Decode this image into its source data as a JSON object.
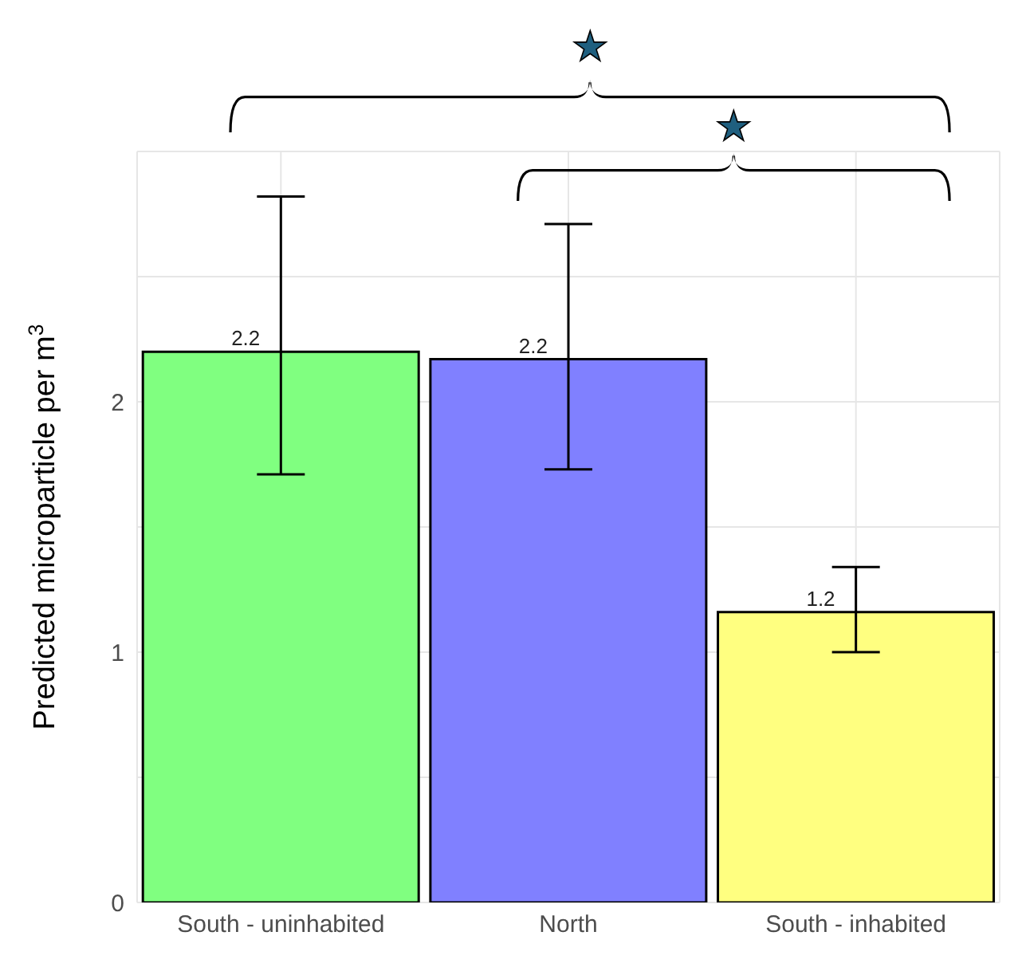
{
  "chart_data": {
    "type": "bar",
    "ylabel": "Predicted microparticle per m$^{3}$",
    "categories": [
      "South - uninhabited",
      "North",
      "South - inhabited"
    ],
    "values": [
      2.2,
      2.17,
      1.16
    ],
    "colors": [
      "#80ff80",
      "#8080ff",
      "#ffff80"
    ],
    "errors": [
      [
        1.71,
        2.82
      ],
      [
        1.73,
        2.71
      ],
      [
        1.0,
        1.34
      ]
    ],
    "value_labels": [
      "2.2",
      "2.2",
      "1.2"
    ],
    "ylim": [
      0,
      3
    ],
    "yticks": [
      0,
      {
        "value": 0.5,
        "label": null
      },
      1,
      {
        "value": 1.5,
        "label": null
      },
      2,
      {
        "value": 2.5,
        "label": null
      }
    ],
    "grid": true,
    "annotations": [
      "★",
      "★"
    ]
  }
}
